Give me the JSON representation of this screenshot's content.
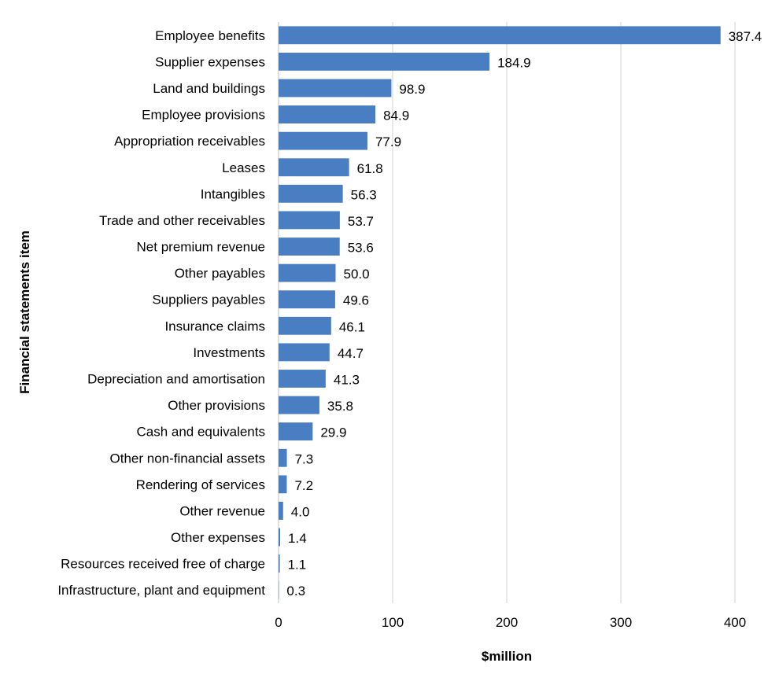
{
  "chart_data": {
    "type": "bar",
    "orientation": "horizontal",
    "title": "",
    "xlabel": "$million",
    "ylabel": "Financial statements item",
    "xlim": [
      0,
      400
    ],
    "x_ticks": [
      "0",
      "100",
      "200",
      "300",
      "400"
    ],
    "grid": "vertical",
    "legend": "none",
    "bar_color": "#4a7ec2",
    "categories": [
      "Employee benefits",
      "Supplier expenses",
      "Land and buildings",
      "Employee provisions",
      "Appropriation receivables",
      "Leases",
      "Intangibles",
      "Trade and other receivables",
      "Net premium revenue",
      "Other payables",
      "Suppliers payables",
      "Insurance claims",
      "Investments",
      "Depreciation and amortisation",
      "Other provisions",
      "Cash and equivalents",
      "Other non-financial assets",
      "Rendering of services",
      "Other revenue",
      "Other expenses",
      "Resources received free of charge",
      "Infrastructure, plant and equipment"
    ],
    "values": [
      387.4,
      184.9,
      98.9,
      84.9,
      77.9,
      61.8,
      56.3,
      53.7,
      53.6,
      50.0,
      49.6,
      46.1,
      44.7,
      41.3,
      35.8,
      29.9,
      7.3,
      7.2,
      4.0,
      1.4,
      1.1,
      0.3
    ],
    "value_labels": [
      "387.4",
      "184.9",
      "98.9",
      "84.9",
      "77.9",
      "61.8",
      "56.3",
      "53.7",
      "53.6",
      "50.0",
      "49.6",
      "46.1",
      "44.7",
      "41.3",
      "35.8",
      "29.9",
      "7.3",
      "7.2",
      "4.0",
      "1.4",
      "1.1",
      "0.3"
    ]
  }
}
